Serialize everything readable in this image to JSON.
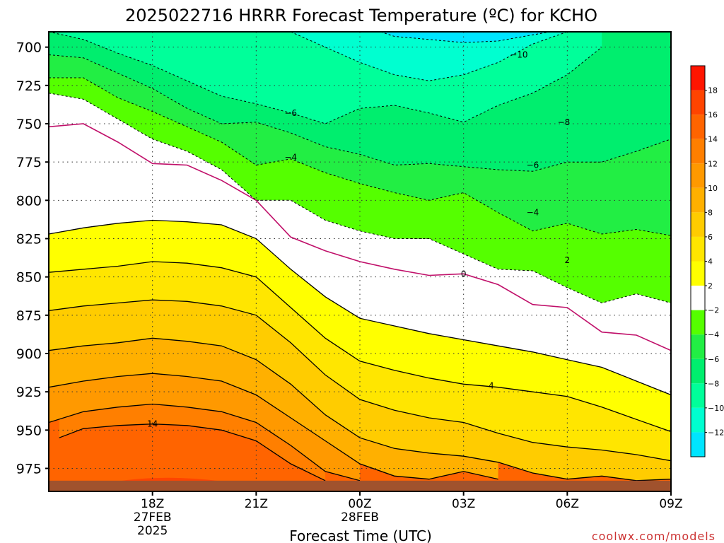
{
  "chart_data": {
    "type": "heatmap",
    "title": "2025022716 HRRR Forecast Temperature (ºC) for KCHO",
    "xlabel": "Forecast Time (UTC)",
    "ylabel": "",
    "credit": "coolwx.com/models",
    "x_range_hours": [
      16,
      34
    ],
    "y_range_hpa": [
      690,
      990
    ],
    "y_ticks": [
      {
        "value": 700,
        "label": "700"
      },
      {
        "value": 725,
        "label": "725"
      },
      {
        "value": 750,
        "label": "750"
      },
      {
        "value": 775,
        "label": "775"
      },
      {
        "value": 800,
        "label": "800"
      },
      {
        "value": 825,
        "label": "825"
      },
      {
        "value": 850,
        "label": "850"
      },
      {
        "value": 875,
        "label": "875"
      },
      {
        "value": 900,
        "label": "900"
      },
      {
        "value": 925,
        "label": "925"
      },
      {
        "value": 950,
        "label": "950"
      },
      {
        "value": 975,
        "label": "975"
      }
    ],
    "x_ticks": [
      {
        "hour": 19,
        "label": "18Z",
        "date": "27FEB",
        "year": "2025"
      },
      {
        "hour": 22,
        "label": "21Z",
        "date": "",
        "year": ""
      },
      {
        "hour": 25,
        "label": "00Z",
        "date": "28FEB",
        "year": ""
      },
      {
        "hour": 28,
        "label": "03Z",
        "date": "",
        "year": ""
      },
      {
        "hour": 31,
        "label": "06Z",
        "date": "",
        "year": ""
      },
      {
        "hour": 34,
        "label": "09Z",
        "date": "",
        "year": ""
      }
    ],
    "grid": true,
    "color_scale": {
      "levels": [
        -14,
        -12,
        -10,
        -8,
        -6,
        -4,
        -2,
        2,
        4,
        6,
        8,
        10,
        12,
        14,
        16,
        18,
        20
      ],
      "colors": [
        "#00e5ff",
        "#00ffd0",
        "#00ff9a",
        "#00ee6e",
        "#22ee44",
        "#55ff00",
        "#ffffff",
        "#ffff00",
        "#ffe600",
        "#ffcc00",
        "#ffb000",
        "#ff9900",
        "#ff7f00",
        "#ff6400",
        "#ff4400",
        "#ff1500"
      ],
      "labels": [
        "18",
        "16",
        "14",
        "12",
        "10",
        "8",
        "6",
        "4",
        "2",
        "−2",
        "−4",
        "−6",
        "−8",
        "−10",
        "−12"
      ]
    },
    "contours": [
      {
        "value": 14,
        "label": "14",
        "style": "solid",
        "points": [
          [
            16.3,
            955
          ],
          [
            17,
            949
          ],
          [
            18,
            947
          ],
          [
            19,
            946
          ],
          [
            20,
            947
          ],
          [
            21,
            950
          ],
          [
            22,
            957
          ],
          [
            23,
            972
          ],
          [
            24,
            983
          ]
        ]
      },
      {
        "value": 12,
        "label": "",
        "style": "solid",
        "points": [
          [
            16,
            945
          ],
          [
            17,
            938
          ],
          [
            18,
            935
          ],
          [
            19,
            933
          ],
          [
            20,
            935
          ],
          [
            21,
            938
          ],
          [
            22,
            945
          ],
          [
            23,
            960
          ],
          [
            24,
            977
          ],
          [
            25,
            983
          ]
        ]
      },
      {
        "value": 10,
        "label": "",
        "style": "solid",
        "points": [
          [
            16,
            922
          ],
          [
            17,
            918
          ],
          [
            18,
            915
          ],
          [
            19,
            913
          ],
          [
            20,
            915
          ],
          [
            21,
            918
          ],
          [
            22,
            927
          ],
          [
            23,
            942
          ],
          [
            24,
            957
          ],
          [
            25,
            972
          ],
          [
            26,
            980
          ],
          [
            27,
            982
          ],
          [
            28,
            977
          ],
          [
            29,
            982
          ]
        ]
      },
      {
        "value": 8,
        "label": "",
        "style": "solid",
        "points": [
          [
            16,
            898
          ],
          [
            17,
            895
          ],
          [
            18,
            893
          ],
          [
            19,
            890
          ],
          [
            20,
            892
          ],
          [
            21,
            895
          ],
          [
            22,
            904
          ],
          [
            23,
            920
          ],
          [
            24,
            940
          ],
          [
            25,
            955
          ],
          [
            26,
            962
          ],
          [
            27,
            965
          ],
          [
            28,
            967
          ],
          [
            29,
            971
          ],
          [
            30,
            978
          ],
          [
            31,
            982
          ],
          [
            32,
            980
          ],
          [
            33,
            983
          ],
          [
            34,
            982
          ]
        ]
      },
      {
        "value": 6,
        "label": "",
        "style": "solid",
        "points": [
          [
            16,
            872
          ],
          [
            17,
            869
          ],
          [
            18,
            867
          ],
          [
            19,
            865
          ],
          [
            20,
            866
          ],
          [
            21,
            869
          ],
          [
            22,
            875
          ],
          [
            23,
            893
          ],
          [
            24,
            914
          ],
          [
            25,
            930
          ],
          [
            26,
            937
          ],
          [
            27,
            942
          ],
          [
            28,
            945
          ],
          [
            29,
            952
          ],
          [
            30,
            958
          ],
          [
            31,
            961
          ],
          [
            32,
            963
          ],
          [
            33,
            966
          ],
          [
            34,
            970
          ],
          [
            34.9,
            975
          ]
        ]
      },
      {
        "value": 4,
        "label": "4",
        "style": "solid",
        "points": [
          [
            16,
            847
          ],
          [
            17,
            845
          ],
          [
            18,
            843
          ],
          [
            19,
            840
          ],
          [
            20,
            841
          ],
          [
            21,
            844
          ],
          [
            22,
            850
          ],
          [
            23,
            870
          ],
          [
            24,
            890
          ],
          [
            25,
            905
          ],
          [
            26,
            911
          ],
          [
            27,
            916
          ],
          [
            28,
            920
          ],
          [
            29,
            922
          ],
          [
            30,
            925
          ],
          [
            31,
            928
          ],
          [
            32,
            935
          ],
          [
            33,
            943
          ],
          [
            34,
            951
          ],
          [
            34.9,
            959
          ]
        ]
      },
      {
        "value": 2,
        "label": "2",
        "style": "solid",
        "points": [
          [
            16,
            822
          ],
          [
            17,
            818
          ],
          [
            18,
            815
          ],
          [
            19,
            813
          ],
          [
            20,
            814
          ],
          [
            21,
            816
          ],
          [
            22,
            825
          ],
          [
            23,
            845
          ],
          [
            24,
            863
          ],
          [
            25,
            877
          ],
          [
            26,
            882
          ],
          [
            27,
            887
          ],
          [
            28,
            891
          ],
          [
            29,
            895
          ],
          [
            30,
            899
          ],
          [
            31,
            904
          ],
          [
            32,
            909
          ],
          [
            33,
            918
          ],
          [
            34,
            927
          ],
          [
            34.9,
            932
          ]
        ]
      },
      {
        "value": 0,
        "label": "0",
        "style": "magenta",
        "points": [
          [
            16,
            752
          ],
          [
            17,
            750
          ],
          [
            18,
            762
          ],
          [
            19,
            776
          ],
          [
            20,
            777
          ],
          [
            21,
            787
          ],
          [
            22,
            800
          ],
          [
            23,
            824
          ],
          [
            24,
            833
          ],
          [
            25,
            840
          ],
          [
            26,
            845
          ],
          [
            27,
            849
          ],
          [
            28,
            848
          ],
          [
            29,
            855
          ],
          [
            30,
            868
          ],
          [
            31,
            870
          ],
          [
            32,
            886
          ],
          [
            33,
            888
          ],
          [
            34,
            898
          ],
          [
            34.9,
            903
          ]
        ]
      },
      {
        "value": -2,
        "label": "",
        "style": "dashed",
        "points": [
          [
            16,
            730
          ],
          [
            17,
            734
          ],
          [
            18,
            747
          ],
          [
            19,
            760
          ],
          [
            20,
            768
          ],
          [
            21,
            780
          ],
          [
            22,
            800
          ],
          [
            23,
            800
          ],
          [
            24,
            813
          ],
          [
            25,
            820
          ],
          [
            26,
            825
          ],
          [
            27,
            825
          ],
          [
            28,
            835
          ],
          [
            29,
            845
          ],
          [
            30,
            846
          ],
          [
            31,
            857
          ],
          [
            32,
            867
          ],
          [
            33,
            861
          ],
          [
            34,
            867
          ],
          [
            34.9,
            874
          ]
        ]
      },
      {
        "value": -4,
        "label": "−4",
        "style": "dashed",
        "points": [
          [
            16,
            720
          ],
          [
            17,
            720
          ],
          [
            18,
            733
          ],
          [
            19,
            742
          ],
          [
            20,
            752
          ],
          [
            21,
            762
          ],
          [
            22,
            777
          ],
          [
            23,
            773
          ],
          [
            24,
            782
          ],
          [
            25,
            789
          ],
          [
            26,
            795
          ],
          [
            27,
            800
          ],
          [
            28,
            795
          ],
          [
            29,
            808
          ],
          [
            30,
            820
          ],
          [
            31,
            815
          ],
          [
            32,
            822
          ],
          [
            33,
            819
          ],
          [
            34,
            823
          ],
          [
            34.9,
            830
          ]
        ]
      },
      {
        "value": -6,
        "label": "−6",
        "style": "dashed",
        "points": [
          [
            16,
            705
          ],
          [
            17,
            707
          ],
          [
            18,
            717
          ],
          [
            19,
            727
          ],
          [
            20,
            740
          ],
          [
            21,
            750
          ],
          [
            22,
            749
          ],
          [
            23,
            756
          ],
          [
            24,
            765
          ],
          [
            25,
            770
          ],
          [
            26,
            777
          ],
          [
            27,
            776
          ],
          [
            28,
            778
          ],
          [
            29,
            780
          ],
          [
            30,
            781
          ],
          [
            31,
            775
          ],
          [
            32,
            775
          ],
          [
            33,
            768
          ],
          [
            34,
            760
          ],
          [
            34.9,
            748
          ]
        ]
      },
      {
        "value": -8,
        "label": "−8",
        "style": "dashed",
        "points": [
          [
            16,
            690
          ],
          [
            17,
            695
          ],
          [
            18,
            704
          ],
          [
            19,
            712
          ],
          [
            20,
            722
          ],
          [
            21,
            732
          ],
          [
            22,
            737
          ],
          [
            23,
            743
          ],
          [
            24,
            750
          ],
          [
            25,
            740
          ],
          [
            26,
            738
          ],
          [
            27,
            743
          ],
          [
            28,
            749
          ],
          [
            29,
            738
          ],
          [
            30,
            730
          ],
          [
            31,
            718
          ],
          [
            32,
            700
          ]
        ]
      },
      {
        "value": -10,
        "label": "−10",
        "style": "dashed",
        "points": [
          [
            23,
            690
          ],
          [
            24,
            700
          ],
          [
            25,
            710
          ],
          [
            26,
            718
          ],
          [
            27,
            722
          ],
          [
            28,
            718
          ],
          [
            29,
            710
          ],
          [
            30,
            698
          ],
          [
            31,
            690
          ]
        ]
      },
      {
        "value": -12,
        "label": "",
        "style": "dashed",
        "points": [
          [
            25.6,
            690
          ],
          [
            26,
            693
          ],
          [
            27,
            695
          ],
          [
            28,
            697
          ],
          [
            29,
            696
          ],
          [
            30,
            692
          ],
          [
            30.5,
            690
          ]
        ]
      }
    ],
    "contour_labels": [
      {
        "value": 14,
        "text": "14",
        "hour": 19.0,
        "level": 946
      },
      {
        "value": 4,
        "text": "4",
        "hour": 28.8,
        "level": 921
      },
      {
        "value": 2,
        "text": "2",
        "hour": 31.0,
        "level": 839
      },
      {
        "value": 0,
        "text": "0",
        "hour": 28.0,
        "level": 848
      },
      {
        "value": -4,
        "text": "−4",
        "hour": 30.0,
        "level": 808
      },
      {
        "value": -4,
        "text": "−4",
        "hour": 23.0,
        "level": 772
      },
      {
        "value": -6,
        "text": "−6",
        "hour": 23.0,
        "level": 743
      },
      {
        "value": -6,
        "text": "−6",
        "hour": 30.0,
        "level": 777
      },
      {
        "value": -8,
        "text": "−8",
        "hour": 30.9,
        "level": 749
      },
      {
        "value": -10,
        "text": "−10",
        "hour": 29.6,
        "level": 705
      }
    ]
  }
}
